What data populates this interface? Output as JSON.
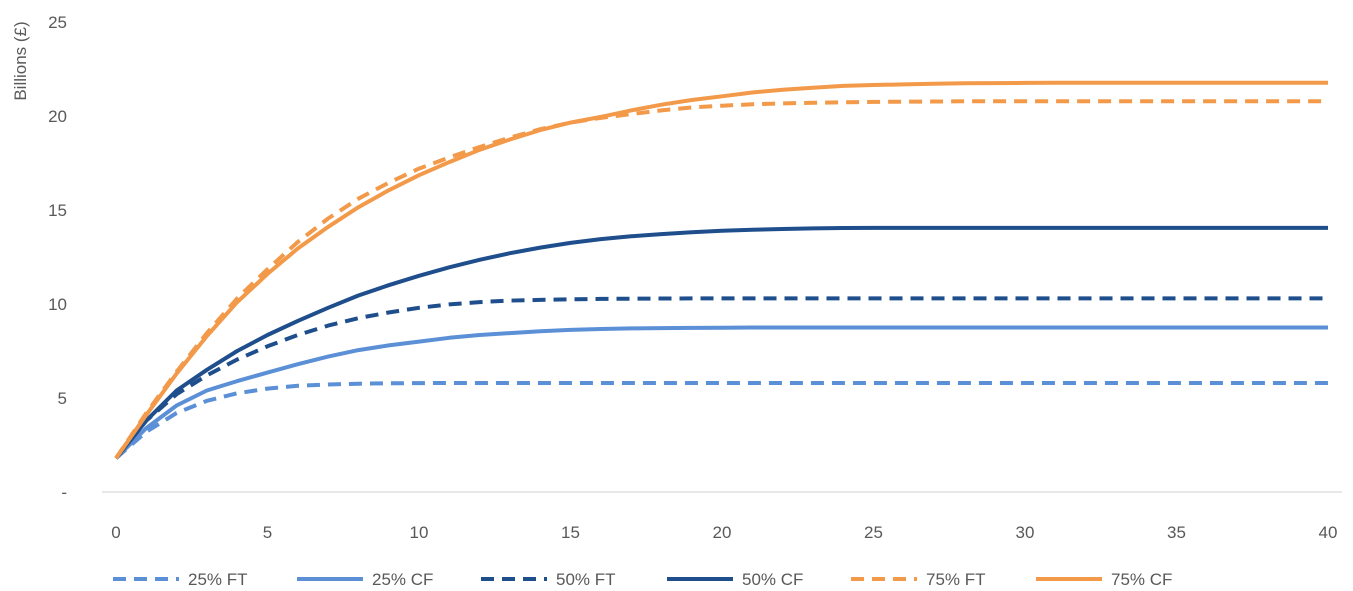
{
  "chart_data": {
    "type": "line",
    "title": "",
    "xlabel": "",
    "ylabel": "Billions (£)",
    "xlim": [
      0,
      40
    ],
    "ylim": [
      0,
      25
    ],
    "x_ticks": [
      "0",
      "5",
      "10",
      "15",
      "20",
      "25",
      "30",
      "35",
      "40"
    ],
    "y_ticks": [
      "-",
      "5",
      "10",
      "15",
      "20",
      "25"
    ],
    "grid": false,
    "legend_position": "bottom",
    "x": [
      0,
      1,
      2,
      3,
      4,
      5,
      6,
      7,
      8,
      9,
      10,
      11,
      12,
      13,
      14,
      15,
      16,
      17,
      18,
      19,
      20,
      21,
      22,
      23,
      24,
      25,
      26,
      27,
      28,
      29,
      30,
      31,
      32,
      33,
      34,
      35,
      36,
      37,
      38,
      39,
      40
    ],
    "series": [
      {
        "name": "25% FT",
        "color": "#5B8FD6",
        "dash": true,
        "values": [
          1.8,
          3.2,
          4.2,
          4.85,
          5.25,
          5.5,
          5.65,
          5.72,
          5.76,
          5.78,
          5.79,
          5.8,
          5.8,
          5.8,
          5.8,
          5.8,
          5.8,
          5.8,
          5.8,
          5.8,
          5.8,
          5.8,
          5.8,
          5.8,
          5.8,
          5.8,
          5.8,
          5.8,
          5.8,
          5.8,
          5.8,
          5.8,
          5.8,
          5.8,
          5.8,
          5.8,
          5.8,
          5.8,
          5.8,
          5.8,
          5.8
        ]
      },
      {
        "name": "25% CF",
        "color": "#5B8FD6",
        "dash": false,
        "values": [
          1.8,
          3.4,
          4.6,
          5.4,
          5.9,
          6.35,
          6.8,
          7.2,
          7.55,
          7.8,
          8.0,
          8.2,
          8.35,
          8.45,
          8.55,
          8.62,
          8.67,
          8.7,
          8.72,
          8.73,
          8.74,
          8.75,
          8.75,
          8.75,
          8.75,
          8.75,
          8.75,
          8.75,
          8.75,
          8.75,
          8.75,
          8.75,
          8.75,
          8.75,
          8.75,
          8.75,
          8.75,
          8.75,
          8.75,
          8.75,
          8.75
        ]
      },
      {
        "name": "50% FT",
        "color": "#1F4E8C",
        "dash": true,
        "values": [
          1.8,
          3.8,
          5.2,
          6.2,
          7.05,
          7.75,
          8.35,
          8.85,
          9.25,
          9.55,
          9.8,
          9.98,
          10.1,
          10.18,
          10.22,
          10.25,
          10.27,
          10.28,
          10.29,
          10.3,
          10.3,
          10.3,
          10.3,
          10.3,
          10.3,
          10.3,
          10.3,
          10.3,
          10.3,
          10.3,
          10.3,
          10.3,
          10.3,
          10.3,
          10.3,
          10.3,
          10.3,
          10.3,
          10.3,
          10.3,
          10.3
        ]
      },
      {
        "name": "50% CF",
        "color": "#1F4E8C",
        "dash": false,
        "values": [
          1.8,
          3.8,
          5.4,
          6.5,
          7.5,
          8.35,
          9.1,
          9.8,
          10.45,
          11.0,
          11.5,
          11.95,
          12.35,
          12.7,
          13.0,
          13.25,
          13.45,
          13.6,
          13.72,
          13.82,
          13.9,
          13.95,
          13.99,
          14.02,
          14.04,
          14.05,
          14.05,
          14.05,
          14.05,
          14.05,
          14.05,
          14.05,
          14.05,
          14.05,
          14.05,
          14.05,
          14.05,
          14.05,
          14.05,
          14.05,
          14.05
        ]
      },
      {
        "name": "75% FT",
        "color": "#F2994A",
        "dash": true,
        "values": [
          1.8,
          4.2,
          6.4,
          8.45,
          10.3,
          11.85,
          13.3,
          14.55,
          15.6,
          16.45,
          17.2,
          17.8,
          18.35,
          18.85,
          19.3,
          19.65,
          19.9,
          20.1,
          20.3,
          20.45,
          20.55,
          20.62,
          20.67,
          20.7,
          20.73,
          20.75,
          20.76,
          20.77,
          20.78,
          20.78,
          20.78,
          20.78,
          20.78,
          20.78,
          20.78,
          20.78,
          20.78,
          20.78,
          20.78,
          20.78,
          20.78
        ]
      },
      {
        "name": "75% CF",
        "color": "#F2994A",
        "dash": false,
        "values": [
          1.8,
          4.1,
          6.3,
          8.3,
          10.1,
          11.6,
          12.95,
          14.1,
          15.15,
          16.05,
          16.85,
          17.55,
          18.2,
          18.75,
          19.25,
          19.65,
          19.95,
          20.3,
          20.6,
          20.85,
          21.05,
          21.25,
          21.4,
          21.5,
          21.6,
          21.65,
          21.68,
          21.72,
          21.74,
          21.75,
          21.76,
          21.77,
          21.77,
          21.77,
          21.77,
          21.77,
          21.77,
          21.77,
          21.77,
          21.77,
          21.77
        ]
      }
    ]
  }
}
